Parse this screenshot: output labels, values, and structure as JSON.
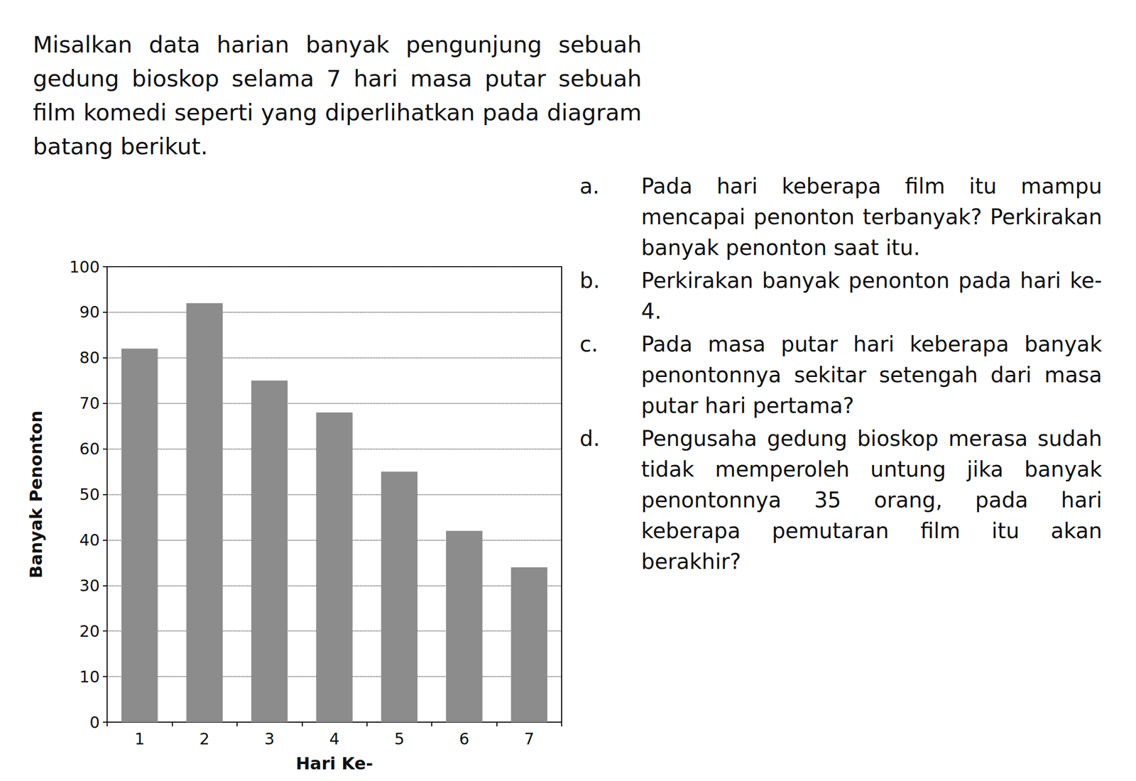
{
  "intro": "Misalkan data harian banyak pengunjung sebuah gedung bioskop selama 7 hari masa putar sebuah film komedi seperti yang diperlihatkan pada diagram batang berikut.",
  "questions": [
    {
      "label": "a.",
      "text": "Pada hari keberapa film itu mampu mencapai penonton terbanyak? Perkirakan banyak penonton saat itu."
    },
    {
      "label": "b.",
      "text": "Perkirakan banyak penonton pada hari ke-4."
    },
    {
      "label": "c.",
      "text": "Pada masa putar hari keberapa banyak penontonnya sekitar setengah dari masa putar hari pertama?"
    },
    {
      "label": "d.",
      "text": "Pengusaha gedung bioskop merasa sudah tidak memperoleh untung jika banyak penontonnya 35 orang, pada hari keberapa pemutaran film itu akan berakhir?"
    }
  ],
  "chart_data": {
    "type": "bar",
    "x_label": "Hari Ke-",
    "y_label": "Banyak Penonton",
    "categories": [
      "1",
      "2",
      "3",
      "4",
      "5",
      "6",
      "7"
    ],
    "values": [
      82,
      92,
      75,
      68,
      55,
      42,
      34
    ],
    "color": "#8c8c8c",
    "ylim": [
      0,
      100
    ],
    "yticks": [
      0,
      10,
      20,
      30,
      40,
      50,
      60,
      70,
      80,
      90,
      100
    ],
    "grid": true
  }
}
